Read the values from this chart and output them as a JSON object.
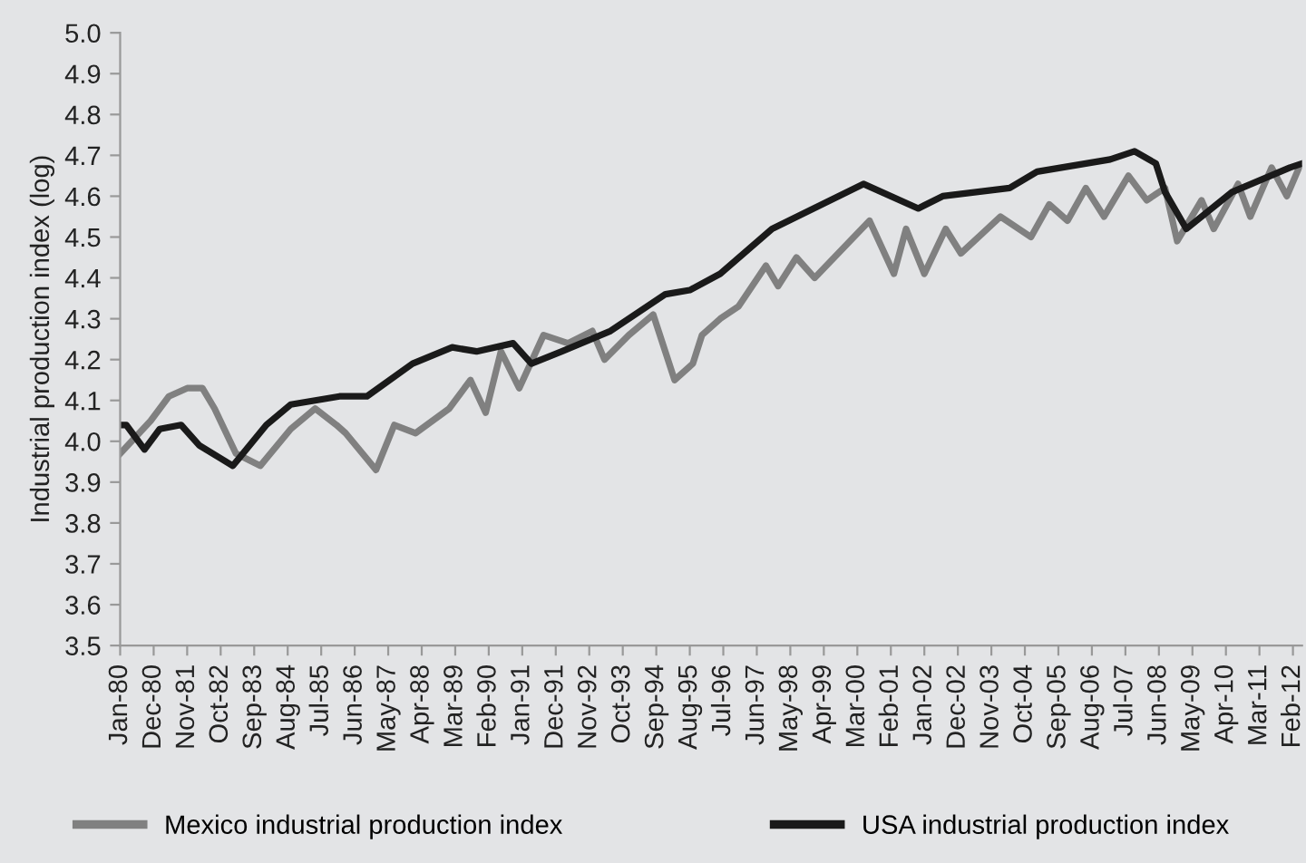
{
  "chart_data": {
    "type": "line",
    "ylabel": "Industrial production index (log)",
    "xlim": [
      "1980-01",
      "2012-05"
    ],
    "ylim": [
      3.5,
      5.0
    ],
    "yticks": [
      3.5,
      3.6,
      3.7,
      3.8,
      3.9,
      {
        "value": 4,
        "label": "4.0"
      },
      4.1,
      4.2,
      4.3,
      4.4,
      4.5,
      4.6,
      4.7,
      4.8,
      4.9,
      {
        "value": 5,
        "label": "5.0"
      }
    ],
    "xticks": [
      {
        "value": "1980-01",
        "label": "Jan-80"
      },
      {
        "value": "1980-12",
        "label": "Dec-80"
      },
      {
        "value": "1981-11",
        "label": "Nov-81"
      },
      {
        "value": "1982-10",
        "label": "Oct-82"
      },
      {
        "value": "1983-09",
        "label": "Sep-83"
      },
      {
        "value": "1984-08",
        "label": "Aug-84"
      },
      {
        "value": "1985-07",
        "label": "Jul-85"
      },
      {
        "value": "1986-06",
        "label": "Jun-86"
      },
      {
        "value": "1987-05",
        "label": "May-87"
      },
      {
        "value": "1988-04",
        "label": "Apr-88"
      },
      {
        "value": "1989-03",
        "label": "Mar-89"
      },
      {
        "value": "1990-02",
        "label": "Feb-90"
      },
      {
        "value": "1991-01",
        "label": "Jan-91"
      },
      {
        "value": "1991-12",
        "label": "Dec-91"
      },
      {
        "value": "1992-11",
        "label": "Nov-92"
      },
      {
        "value": "1993-10",
        "label": "Oct-93"
      },
      {
        "value": "1994-09",
        "label": "Sep-94"
      },
      {
        "value": "1995-08",
        "label": "Aug-95"
      },
      {
        "value": "1996-07",
        "label": "Jul-96"
      },
      {
        "value": "1997-06",
        "label": "Jun-97"
      },
      {
        "value": "1998-05",
        "label": "May-98"
      },
      {
        "value": "1999-04",
        "label": "Apr-99"
      },
      {
        "value": "2000-03",
        "label": "Mar-00"
      },
      {
        "value": "2001-02",
        "label": "Feb-01"
      },
      {
        "value": "2002-01",
        "label": "Jan-02"
      },
      {
        "value": "2002-12",
        "label": "Dec-02"
      },
      {
        "value": "2003-11",
        "label": "Nov-03"
      },
      {
        "value": "2004-10",
        "label": "Oct-04"
      },
      {
        "value": "2005-09",
        "label": "Sep-05"
      },
      {
        "value": "2006-08",
        "label": "Aug-06"
      },
      {
        "value": "2007-07",
        "label": "Jul-07"
      },
      {
        "value": "2008-06",
        "label": "Jun-08"
      },
      {
        "value": "2009-05",
        "label": "May-09"
      },
      {
        "value": "2010-04",
        "label": "Apr-10"
      },
      {
        "value": "2011-03",
        "label": "Mar-11"
      },
      {
        "value": "2012-02",
        "label": "Feb-12"
      }
    ],
    "grid": false,
    "legend": "bottom",
    "marker": "none",
    "line_style": "solid",
    "series": [
      {
        "name": "Mexico industrial production index",
        "color": "#808080",
        "x": [
          "1980-01",
          "1980-11",
          "1981-05",
          "1981-11",
          "1982-04",
          "1982-08",
          "1983-03",
          "1983-11",
          "1984-09",
          "1985-05",
          "1985-12",
          "1986-03",
          "1987-01",
          "1987-07",
          "1988-02",
          "1989-01",
          "1989-08",
          "1990-01",
          "1990-06",
          "1990-12",
          "1991-08",
          "1992-04",
          "1992-12",
          "1993-04",
          "1993-12",
          "1994-08",
          "1995-03",
          "1995-09",
          "1995-12",
          "1996-06",
          "1996-12",
          "1997-09",
          "1998-01",
          "1998-07",
          "1999-01",
          "2000-07",
          "2001-03",
          "2001-07",
          "2002-01",
          "2002-08",
          "2003-01",
          "2004-02",
          "2004-12",
          "2005-06",
          "2005-12",
          "2006-06",
          "2006-12",
          "2007-08",
          "2008-02",
          "2008-08",
          "2008-12",
          "2009-08",
          "2009-12",
          "2010-08",
          "2010-12",
          "2011-07",
          "2011-12",
          "2012-04"
        ],
        "values": [
          3.97,
          4.05,
          4.11,
          4.13,
          4.13,
          4.08,
          3.97,
          3.94,
          4.03,
          4.08,
          4.04,
          4.02,
          3.93,
          4.04,
          4.02,
          4.08,
          4.15,
          4.07,
          4.22,
          4.13,
          4.26,
          4.24,
          4.27,
          4.2,
          4.26,
          4.31,
          4.15,
          4.19,
          4.26,
          4.3,
          4.33,
          4.43,
          4.38,
          4.45,
          4.4,
          4.54,
          4.41,
          4.52,
          4.41,
          4.52,
          4.46,
          4.55,
          4.5,
          4.58,
          4.54,
          4.62,
          4.55,
          4.65,
          4.59,
          4.62,
          4.49,
          4.59,
          4.52,
          4.63,
          4.55,
          4.67,
          4.6,
          4.67
        ]
      },
      {
        "name": "USA industrial production index",
        "color": "#1a1a1a",
        "x": [
          "1980-01",
          "1980-03",
          "1980-09",
          "1981-02",
          "1981-09",
          "1982-03",
          "1983-02",
          "1984-01",
          "1984-09",
          "1986-01",
          "1986-10",
          "1988-01",
          "1989-02",
          "1989-10",
          "1990-10",
          "1991-04",
          "1992-02",
          "1993-06",
          "1994-12",
          "1995-08",
          "1996-06",
          "1997-11",
          "2000-05",
          "2001-11",
          "2002-07",
          "2004-05",
          "2005-02",
          "2007-02",
          "2007-10",
          "2008-05",
          "2008-08",
          "2009-03",
          "2010-06",
          "2012-01",
          "2012-05"
        ],
        "values": [
          4.04,
          4.04,
          3.98,
          4.03,
          4.04,
          3.99,
          3.94,
          4.04,
          4.09,
          4.11,
          4.11,
          4.19,
          4.23,
          4.22,
          4.24,
          4.19,
          4.22,
          4.27,
          4.36,
          4.37,
          4.41,
          4.52,
          4.63,
          4.57,
          4.6,
          4.62,
          4.66,
          4.69,
          4.71,
          4.68,
          4.61,
          4.52,
          4.61,
          4.67,
          4.68
        ]
      }
    ]
  }
}
